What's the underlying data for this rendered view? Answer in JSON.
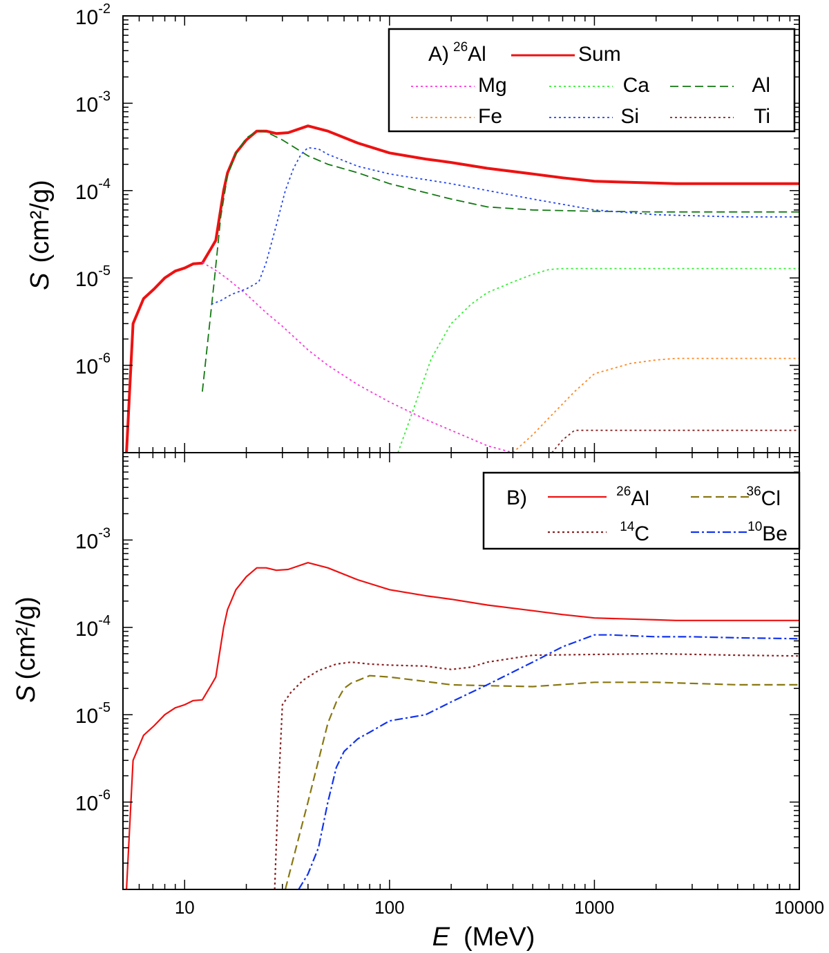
{
  "x_axis": {
    "label_italic": "E",
    "label_unit": "(MeV)",
    "ticks": [
      {
        "v": 10,
        "label": "10"
      },
      {
        "v": 100,
        "label": "100"
      },
      {
        "v": 1000,
        "label": "1000"
      },
      {
        "v": 10000,
        "label": "10000"
      }
    ]
  },
  "chart_data": [
    {
      "type": "line",
      "panel": "A",
      "log_x": true,
      "log_y": true,
      "xlim": [
        5,
        10000
      ],
      "ylim": [
        1e-07,
        0.01
      ],
      "ylabel_italic": "S",
      "ylabel_unit": "(cm²/g)",
      "yticks": [
        {
          "v": 0.01,
          "base": "10",
          "exp": "-2"
        },
        {
          "v": 0.001,
          "base": "10",
          "exp": "-3"
        },
        {
          "v": 0.0001,
          "base": "10",
          "exp": "-4"
        },
        {
          "v": 1e-05,
          "base": "10",
          "exp": "-5"
        },
        {
          "v": 1e-06,
          "base": "10",
          "exp": "-6"
        }
      ],
      "legend": {
        "placement": "top-right",
        "prefix": "A)",
        "prefix_sup": "26",
        "prefix_main": "Al"
      },
      "series": [
        {
          "name": "Sum",
          "color": "#ee1111",
          "style": "solid",
          "width": 4,
          "x": [
            5.2,
            5.6,
            6.3,
            7.1,
            8,
            9,
            10,
            11,
            12.2,
            13.5,
            14.2,
            15.5,
            16.2,
            17.8,
            20,
            22.5,
            25,
            28,
            32,
            40,
            50,
            70,
            100,
            150,
            200,
            300,
            500,
            700,
            1000,
            2000,
            2500,
            5000,
            10000
          ],
          "y": [
            1e-07,
            3e-06,
            5.8e-06,
            7.5e-06,
            1e-05,
            1.2e-05,
            1.3e-05,
            1.45e-05,
            1.48e-05,
            2.2e-05,
            2.7e-05,
            0.0001,
            0.00016,
            0.00027,
            0.00038,
            0.00048,
            0.00048,
            0.00045,
            0.00046,
            0.00055,
            0.00048,
            0.00035,
            0.00027,
            0.00023,
            0.00021,
            0.00018,
            0.000155,
            0.00014,
            0.000128,
            0.000122,
            0.00012,
            0.00012,
            0.00012
          ]
        },
        {
          "name": "Mg",
          "color": "#ff33dd",
          "style": "dotted",
          "width": 1.8,
          "x": [
            12.2,
            14,
            16,
            20,
            25,
            30,
            40,
            50,
            70,
            100,
            150,
            200,
            300,
            400
          ],
          "y": [
            1.5e-05,
            1.25e-05,
            1e-05,
            6.5e-06,
            4e-06,
            2.8e-06,
            1.5e-06,
            1e-06,
            6e-07,
            3.8e-07,
            2.4e-07,
            1.8e-07,
            1.2e-07,
            1e-07
          ]
        },
        {
          "name": "Ca",
          "color": "#33ee33",
          "style": "dotted",
          "width": 1.8,
          "x": [
            110,
            130,
            160,
            200,
            250,
            300,
            400,
            500,
            600,
            700,
            1000,
            2000,
            5000,
            10000
          ],
          "y": [
            1e-07,
            3e-07,
            1.2e-06,
            3e-06,
            5e-06,
            6.8e-06,
            9e-06,
            1.1e-05,
            1.25e-05,
            1.28e-05,
            1.28e-05,
            1.28e-05,
            1.28e-05,
            1.28e-05
          ]
        },
        {
          "name": "Al",
          "color": "#117711",
          "style": "dashed",
          "width": 1.8,
          "x": [
            12.2,
            13,
            14,
            15,
            16.2,
            18,
            20,
            22.5,
            25,
            30,
            40,
            50,
            70,
            100,
            200,
            300,
            500,
            1000,
            2000,
            5000,
            10000
          ],
          "y": [
            5e-07,
            2e-06,
            1e-05,
            5e-05,
            0.00015,
            0.00028,
            0.0004,
            0.00048,
            0.00047,
            0.00038,
            0.00025,
            0.0002,
            0.00016,
            0.00012,
            8e-05,
            6.5e-05,
            6e-05,
            5.8e-05,
            5.7e-05,
            5.7e-05,
            5.7e-05
          ]
        },
        {
          "name": "Fe",
          "color": "#ff8822",
          "style": "dotted",
          "width": 1.8,
          "x": [
            400,
            500,
            600,
            800,
            1000,
            1500,
            2000,
            2500,
            5000,
            10000
          ],
          "y": [
            1e-07,
            1.6e-07,
            2.5e-07,
            5e-07,
            8e-07,
            1.05e-06,
            1.15e-06,
            1.2e-06,
            1.2e-06,
            1.2e-06
          ]
        },
        {
          "name": "Si",
          "color": "#2244ee",
          "style": "dotted",
          "width": 1.8,
          "x": [
            13.5,
            15,
            17,
            20,
            23,
            25,
            28,
            31,
            34,
            37,
            40,
            45,
            50,
            70,
            100,
            200,
            500,
            1000,
            2000,
            5000,
            10000
          ],
          "y": [
            5e-06,
            5.5e-06,
            6.5e-06,
            7.5e-06,
            9e-06,
            1.5e-05,
            4e-05,
            0.0001,
            0.00018,
            0.00026,
            0.00031,
            0.0003,
            0.00026,
            0.00019,
            0.000155,
            0.00012,
            8e-05,
            6e-05,
            5.3e-05,
            5e-05,
            5e-05
          ]
        },
        {
          "name": "Ti",
          "color": "#882222",
          "style": "dotted",
          "width": 1.8,
          "x": [
            620,
            700,
            800,
            900,
            1000,
            2000,
            5000,
            10000
          ],
          "y": [
            1e-07,
            1.4e-07,
            1.8e-07,
            1.8e-07,
            1.8e-07,
            1.8e-07,
            1.8e-07,
            1.8e-07
          ]
        }
      ]
    },
    {
      "type": "line",
      "panel": "B",
      "log_x": true,
      "log_y": true,
      "xlim": [
        5,
        10000
      ],
      "ylim": [
        1e-07,
        0.01
      ],
      "ylabel_italic": "S",
      "ylabel_unit": "(cm²/g)",
      "yticks": [
        {
          "v": 0.001,
          "base": "10",
          "exp": "-3"
        },
        {
          "v": 0.0001,
          "base": "10",
          "exp": "-4"
        },
        {
          "v": 1e-05,
          "base": "10",
          "exp": "-5"
        },
        {
          "v": 1e-06,
          "base": "10",
          "exp": "-6"
        }
      ],
      "legend": {
        "placement": "top-right",
        "prefix": "B)"
      },
      "series": [
        {
          "sup": "26",
          "name": "Al",
          "color": "#ee1111",
          "style": "solid",
          "width": 2.2,
          "x": [
            5.2,
            5.6,
            6.3,
            7.1,
            8,
            9,
            10,
            11,
            12.2,
            13.5,
            14.2,
            15.5,
            16.2,
            17.8,
            20,
            22.5,
            25,
            28,
            32,
            40,
            50,
            70,
            100,
            150,
            200,
            300,
            500,
            700,
            1000,
            2000,
            2500,
            5000,
            10000
          ],
          "y": [
            1e-07,
            3e-06,
            5.8e-06,
            7.5e-06,
            1e-05,
            1.2e-05,
            1.3e-05,
            1.45e-05,
            1.48e-05,
            2.2e-05,
            2.7e-05,
            0.0001,
            0.00016,
            0.00027,
            0.00038,
            0.00048,
            0.00048,
            0.00045,
            0.00046,
            0.00055,
            0.00048,
            0.00035,
            0.00027,
            0.00023,
            0.00021,
            0.00018,
            0.000155,
            0.00014,
            0.000128,
            0.000122,
            0.00012,
            0.00012,
            0.00012
          ]
        },
        {
          "sup": "36",
          "name": "Cl",
          "color": "#887711",
          "style": "dashed",
          "width": 2.2,
          "x": [
            31,
            35,
            40,
            45,
            50,
            55,
            60,
            65,
            80,
            100,
            150,
            200,
            300,
            500,
            1000,
            2000,
            5000,
            10000
          ],
          "y": [
            1e-07,
            3e-07,
            1e-06,
            3e-06,
            8e-06,
            1.4e-05,
            2e-05,
            2.3e-05,
            2.8e-05,
            2.7e-05,
            2.4e-05,
            2.2e-05,
            2.15e-05,
            2.1e-05,
            2.35e-05,
            2.35e-05,
            2.2e-05,
            2.2e-05
          ]
        },
        {
          "sup": "14",
          "name": "C",
          "color": "#882222",
          "style": "dotted",
          "width": 2.2,
          "x": [
            27.5,
            28.5,
            30,
            33,
            38,
            45,
            55,
            65,
            80,
            100,
            150,
            200,
            250,
            300,
            500,
            1000,
            2000,
            5000,
            10000
          ],
          "y": [
            1e-07,
            1e-06,
            1.3e-05,
            1.8e-05,
            2.5e-05,
            3.2e-05,
            3.8e-05,
            4e-05,
            3.8e-05,
            3.7e-05,
            3.6e-05,
            3.3e-05,
            3.5e-05,
            4e-05,
            4.8e-05,
            4.9e-05,
            5e-05,
            4.8e-05,
            4.7e-05
          ]
        },
        {
          "sup": "10",
          "name": "Be",
          "color": "#1133ee",
          "style": "dashdot",
          "width": 2.2,
          "x": [
            36,
            40,
            45,
            50,
            55,
            60,
            70,
            80,
            100,
            150,
            200,
            300,
            500,
            700,
            1000,
            1200,
            2000,
            3000,
            5000,
            10000
          ],
          "y": [
            1e-07,
            1.5e-07,
            3e-07,
            1e-06,
            2.5e-06,
            3.8e-06,
            5.3e-06,
            6.3e-06,
            8.5e-06,
            1e-05,
            1.4e-05,
            2.2e-05,
            4e-05,
            6e-05,
            8.2e-05,
            8.2e-05,
            7.8e-05,
            7.8e-05,
            7.6e-05,
            7.4e-05
          ]
        }
      ]
    }
  ]
}
